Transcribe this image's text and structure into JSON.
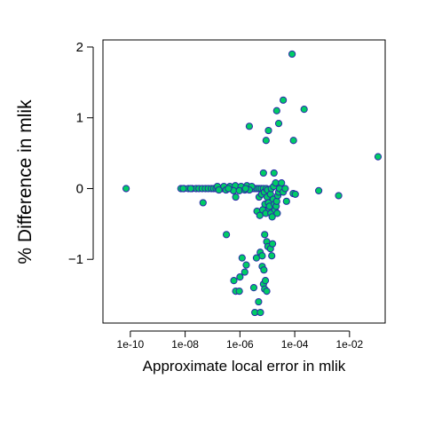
{
  "chart_data": {
    "type": "scatter",
    "xlabel": "Approximate local error in mlik",
    "ylabel": "% Difference in mlik",
    "x_scale": "log",
    "xlim": [
      1e-11,
      0.2
    ],
    "ylim": [
      -1.9,
      2.1
    ],
    "x_ticks": [
      1e-10,
      1e-08,
      1e-06,
      0.0001,
      0.01
    ],
    "x_tick_labels": [
      "1e-10",
      "1e-08",
      "1e-06",
      "1e-04",
      "1e-02"
    ],
    "y_ticks": [
      -1,
      0,
      1,
      2
    ],
    "y_tick_labels": [
      "−1",
      "0",
      "1",
      "2"
    ],
    "grid": false,
    "point_fill": "#00cc66",
    "point_stroke": "#2a2aa8",
    "points": [
      {
        "x": 7e-11,
        "y": 0.0
      },
      {
        "x": 7e-09,
        "y": 0.0
      },
      {
        "x": 9e-09,
        "y": 0.0
      },
      {
        "x": 1.3e-08,
        "y": 0.0
      },
      {
        "x": 1.8e-08,
        "y": 0.0
      },
      {
        "x": 2.5e-08,
        "y": 0.0
      },
      {
        "x": 3.2e-08,
        "y": 0.0
      },
      {
        "x": 4.2e-08,
        "y": 0.0
      },
      {
        "x": 5.5e-08,
        "y": 0.0
      },
      {
        "x": 7e-08,
        "y": 0.0
      },
      {
        "x": 9e-08,
        "y": 0.0
      },
      {
        "x": 1.1e-07,
        "y": 0.0
      },
      {
        "x": 1.35e-07,
        "y": 0.0
      },
      {
        "x": 1.6e-07,
        "y": 0.0
      },
      {
        "x": 1.9e-07,
        "y": 0.0
      },
      {
        "x": 2.3e-07,
        "y": 0.0
      },
      {
        "x": 2.8e-07,
        "y": 0.0
      },
      {
        "x": 3.3e-07,
        "y": 0.0
      },
      {
        "x": 3.9e-07,
        "y": 0.0
      },
      {
        "x": 4.6e-07,
        "y": 0.0
      },
      {
        "x": 5.4e-07,
        "y": 0.0
      },
      {
        "x": 6.3e-07,
        "y": 0.0
      },
      {
        "x": 7.4e-07,
        "y": 0.0
      },
      {
        "x": 8.6e-07,
        "y": 0.0
      },
      {
        "x": 1e-06,
        "y": 0.0
      },
      {
        "x": 1.2e-06,
        "y": 0.0
      },
      {
        "x": 1.4e-06,
        "y": 0.0
      },
      {
        "x": 1.7e-06,
        "y": 0.0
      },
      {
        "x": 2e-06,
        "y": 0.0
      },
      {
        "x": 2.4e-06,
        "y": 0.0
      },
      {
        "x": 2.9e-06,
        "y": 0.0
      },
      {
        "x": 3.5e-06,
        "y": 0.0
      },
      {
        "x": 4.2e-06,
        "y": 0.0
      },
      {
        "x": 5e-06,
        "y": 0.0
      },
      {
        "x": 6e-06,
        "y": 0.0
      },
      {
        "x": 7.2e-06,
        "y": 0.0
      },
      {
        "x": 1.5e-07,
        "y": 0.03
      },
      {
        "x": 2.6e-07,
        "y": 0.03
      },
      {
        "x": 4.3e-07,
        "y": 0.03
      },
      {
        "x": 6.8e-07,
        "y": 0.04
      },
      {
        "x": 1.1e-06,
        "y": 0.03
      },
      {
        "x": 1.8e-06,
        "y": 0.04
      },
      {
        "x": 2.7e-06,
        "y": 0.03
      },
      {
        "x": 1.7e-07,
        "y": -0.02
      },
      {
        "x": 3.1e-07,
        "y": -0.02
      },
      {
        "x": 5.8e-07,
        "y": -0.03
      },
      {
        "x": 9.5e-07,
        "y": -0.03
      },
      {
        "x": 1.5e-06,
        "y": -0.02
      },
      {
        "x": 2.2e-06,
        "y": -0.02
      },
      {
        "x": 3.8e-07,
        "y": 0.0
      },
      {
        "x": 1.6e-06,
        "y": 0.0
      },
      {
        "x": 8.5e-09,
        "y": 0.0
      },
      {
        "x": 1.6e-08,
        "y": 0.0
      },
      {
        "x": 4.5e-08,
        "y": -0.2
      },
      {
        "x": 7e-07,
        "y": -0.12
      },
      {
        "x": 3.2e-07,
        "y": -0.65
      },
      {
        "x": 6e-07,
        "y": -1.3
      },
      {
        "x": 7e-07,
        "y": -1.45
      },
      {
        "x": 9.5e-07,
        "y": -1.45
      },
      {
        "x": 1e-06,
        "y": -1.25
      },
      {
        "x": 1.2e-06,
        "y": -0.98
      },
      {
        "x": 1.5e-06,
        "y": -1.18
      },
      {
        "x": 1.7e-06,
        "y": -1.08
      },
      {
        "x": 2.2e-06,
        "y": 0.88
      },
      {
        "x": 3.2e-06,
        "y": -1.4
      },
      {
        "x": 3.5e-06,
        "y": -1.75
      },
      {
        "x": 4e-06,
        "y": -0.98
      },
      {
        "x": 4.8e-06,
        "y": -1.6
      },
      {
        "x": 5.6e-06,
        "y": -1.75
      },
      {
        "x": 5.5e-06,
        "y": -0.9
      },
      {
        "x": 6.5e-06,
        "y": -0.95
      },
      {
        "x": 6.5e-06,
        "y": -1.1
      },
      {
        "x": 7.5e-06,
        "y": -1.15
      },
      {
        "x": 7.2e-06,
        "y": -1.35
      },
      {
        "x": 8.5e-06,
        "y": -1.3
      },
      {
        "x": 8e-06,
        "y": -1.42
      },
      {
        "x": 9.5e-06,
        "y": -1.45
      },
      {
        "x": 8e-06,
        "y": -0.65
      },
      {
        "x": 9.5e-06,
        "y": -0.75
      },
      {
        "x": 1.05e-05,
        "y": -0.82
      },
      {
        "x": 1.3e-05,
        "y": -0.85
      },
      {
        "x": 1.55e-05,
        "y": -0.78
      },
      {
        "x": 1.45e-05,
        "y": -0.95
      },
      {
        "x": 4.2e-06,
        "y": -0.32
      },
      {
        "x": 5.3e-06,
        "y": -0.38
      },
      {
        "x": 5e-06,
        "y": -0.12
      },
      {
        "x": 6.2e-06,
        "y": -0.08
      },
      {
        "x": 6.8e-06,
        "y": -0.3
      },
      {
        "x": 7.2e-06,
        "y": 0.22
      },
      {
        "x": 7.8e-06,
        "y": -0.05
      },
      {
        "x": 8.2e-06,
        "y": -0.22
      },
      {
        "x": 8.8e-06,
        "y": -0.35
      },
      {
        "x": 9.2e-06,
        "y": 0.0
      },
      {
        "x": 9.8e-06,
        "y": -0.12
      },
      {
        "x": 1.02e-05,
        "y": -0.02
      },
      {
        "x": 1.1e-05,
        "y": -0.2
      },
      {
        "x": 1.15e-05,
        "y": -0.28
      },
      {
        "x": 1.2e-05,
        "y": -0.25
      },
      {
        "x": 1.3e-05,
        "y": -0.08
      },
      {
        "x": 1.35e-05,
        "y": -0.35
      },
      {
        "x": 1.4e-05,
        "y": 0.0
      },
      {
        "x": 1.5e-05,
        "y": -0.4
      },
      {
        "x": 1.65e-05,
        "y": -0.15
      },
      {
        "x": 1.7e-05,
        "y": 0.03
      },
      {
        "x": 1.8e-05,
        "y": -0.22
      },
      {
        "x": 1.9e-05,
        "y": -0.3
      },
      {
        "x": 1.75e-05,
        "y": 0.22
      },
      {
        "x": 2.1e-05,
        "y": -0.25
      },
      {
        "x": 2.2e-05,
        "y": -0.18
      },
      {
        "x": 2.3e-05,
        "y": -0.35
      },
      {
        "x": 2.4e-05,
        "y": -0.1
      },
      {
        "x": 2.6e-05,
        "y": -0.05
      },
      {
        "x": 2.8e-05,
        "y": 0.0
      },
      {
        "x": 2e-05,
        "y": 0.08
      },
      {
        "x": 3.3e-05,
        "y": 0.08
      },
      {
        "x": 3.8e-05,
        "y": -0.05
      },
      {
        "x": 4.5e-05,
        "y": 0.0
      },
      {
        "x": 5e-05,
        "y": -0.18
      },
      {
        "x": 9e-06,
        "y": 0.68
      },
      {
        "x": 1.1e-05,
        "y": 0.82
      },
      {
        "x": 2.2e-05,
        "y": 1.1
      },
      {
        "x": 2.6e-05,
        "y": 0.92
      },
      {
        "x": 3.8e-05,
        "y": 1.25
      },
      {
        "x": 8e-05,
        "y": 1.9
      },
      {
        "x": 9e-05,
        "y": 0.68
      },
      {
        "x": 8.8e-05,
        "y": -0.07
      },
      {
        "x": 0.000105,
        "y": -0.08
      },
      {
        "x": 0.00022,
        "y": 1.12
      },
      {
        "x": 0.00075,
        "y": -0.03
      },
      {
        "x": 0.004,
        "y": -0.1
      },
      {
        "x": 0.11,
        "y": 0.45
      }
    ]
  }
}
